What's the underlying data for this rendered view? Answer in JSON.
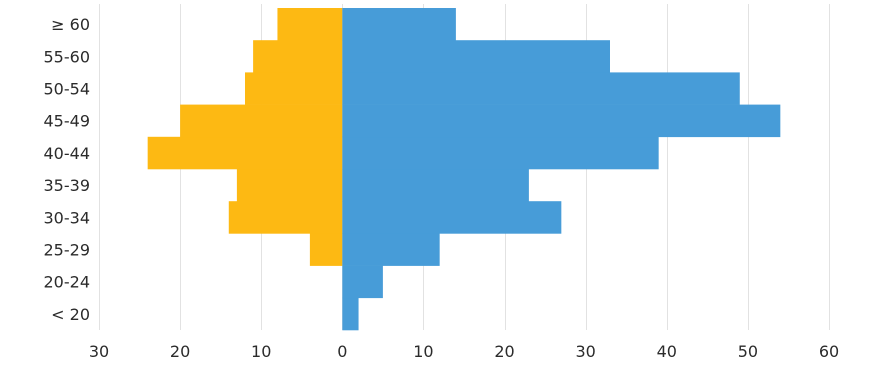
{
  "chart_data": {
    "type": "bar",
    "orientation": "horizontal",
    "layout": "population-pyramid",
    "title": "",
    "xlabel": "",
    "ylabel": "",
    "categories": [
      "< 20",
      "20-24",
      "25-29",
      "30-34",
      "35-39",
      "40-44",
      "45-49",
      "50-54",
      "55-60",
      "≥ 60"
    ],
    "series": [
      {
        "side": "left",
        "color": "#FDB913",
        "values": [
          0,
          0,
          4,
          14,
          13,
          24,
          20,
          12,
          11,
          8
        ]
      },
      {
        "side": "right",
        "color": "#479CD8",
        "values": [
          2,
          5,
          12,
          27,
          23,
          39,
          54,
          49,
          33,
          14
        ]
      }
    ],
    "xlim": [
      -30,
      60
    ],
    "xticks": [
      -30,
      -20,
      -10,
      0,
      10,
      20,
      30,
      40,
      50,
      60
    ],
    "xtick_labels": [
      "30",
      "20",
      "10",
      "0",
      "10",
      "20",
      "30",
      "40",
      "50",
      "60"
    ],
    "grid": true,
    "legend": "none"
  }
}
